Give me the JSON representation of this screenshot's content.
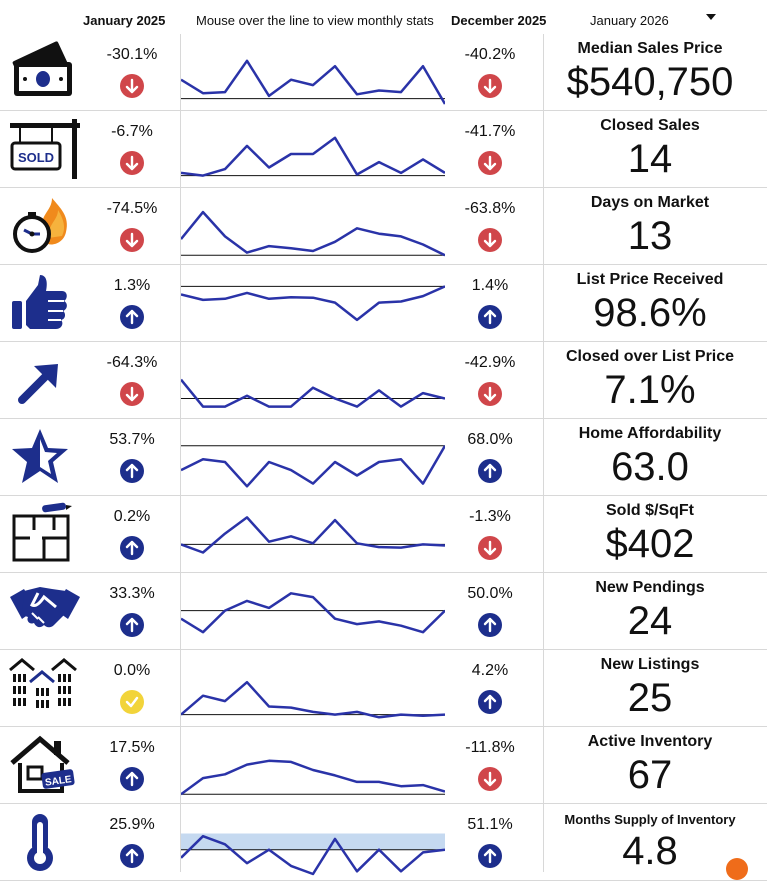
{
  "header": {
    "start_month": "January 2025",
    "instruction": "Mouse over the line to view monthly stats",
    "end_month": "December 2025",
    "selected_month": "January 2026"
  },
  "colors": {
    "up": "#1d2e8c",
    "down": "#d0464a",
    "neutral": "#f2d43a",
    "line": "#2a33a8",
    "band": "#c5d9f0"
  },
  "rows": [
    {
      "icon": "money-icon",
      "label": "Median Sales Price",
      "value": "$540,750",
      "yoy": "-30.1%",
      "yoy_dir": "down",
      "mom": "-40.2%",
      "mom_dir": "down",
      "spark": [
        0.55,
        0.8,
        0.78,
        0.2,
        0.85,
        0.55,
        0.65,
        0.3,
        0.82,
        0.75,
        0.78,
        0.3,
        1.0
      ],
      "baseline": 0.9,
      "band": null
    },
    {
      "icon": "sold-sign-icon",
      "label": "Closed Sales",
      "value": "14",
      "yoy": "-6.7%",
      "yoy_dir": "down",
      "mom": "-41.7%",
      "mom_dir": "down",
      "spark": [
        0.85,
        0.9,
        0.78,
        0.35,
        0.75,
        0.5,
        0.5,
        0.2,
        0.88,
        0.65,
        0.85,
        0.6,
        0.85
      ],
      "baseline": 0.9,
      "band": null
    },
    {
      "icon": "stopwatch-fire-icon",
      "label": "Days on Market",
      "value": "13",
      "yoy": "-74.5%",
      "yoy_dir": "down",
      "mom": "-63.8%",
      "mom_dir": "down",
      "spark": [
        0.65,
        0.15,
        0.6,
        0.9,
        0.78,
        0.82,
        0.87,
        0.7,
        0.45,
        0.55,
        0.6,
        0.75,
        0.95
      ],
      "baseline": 0.95,
      "band": null
    },
    {
      "icon": "thumbs-up-icon",
      "label": "List Price Received",
      "value": "98.6%",
      "yoy": "1.3%",
      "yoy_dir": "up",
      "mom": "1.4%",
      "mom_dir": "up",
      "spark": [
        0.25,
        0.35,
        0.33,
        0.22,
        0.33,
        0.3,
        0.31,
        0.4,
        0.72,
        0.4,
        0.38,
        0.28,
        0.1
      ],
      "baseline": 0.1,
      "band": null
    },
    {
      "icon": "arrow-up-right-icon",
      "label": "Closed over List Price",
      "value": "7.1%",
      "yoy": "-64.3%",
      "yoy_dir": "down",
      "mom": "-42.9%",
      "mom_dir": "down",
      "spark": [
        0.4,
        0.9,
        0.9,
        0.7,
        0.9,
        0.9,
        0.55,
        0.75,
        0.9,
        0.6,
        0.9,
        0.65,
        0.75
      ],
      "baseline": 0.75,
      "band": null
    },
    {
      "icon": "star-icon",
      "label": "Home Affordability",
      "value": "63.0",
      "yoy": "53.7%",
      "yoy_dir": "up",
      "mom": "68.0%",
      "mom_dir": "up",
      "spark": [
        0.65,
        0.45,
        0.5,
        0.95,
        0.5,
        0.65,
        0.9,
        0.5,
        0.75,
        0.5,
        0.45,
        0.9,
        0.2
      ],
      "baseline": 0.2,
      "band": null
    },
    {
      "icon": "floor-plan-icon",
      "label": "Sold $/SqFt",
      "value": "$402",
      "yoy": "0.2%",
      "yoy_dir": "up",
      "mom": "-1.3%",
      "mom_dir": "down",
      "spark": [
        0.6,
        0.75,
        0.4,
        0.1,
        0.55,
        0.45,
        0.58,
        0.15,
        0.58,
        0.65,
        0.66,
        0.6,
        0.62
      ],
      "baseline": 0.6,
      "band": null
    },
    {
      "icon": "handshake-icon",
      "label": "New Pendings",
      "value": "24",
      "yoy": "33.3%",
      "yoy_dir": "up",
      "mom": "50.0%",
      "mom_dir": "up",
      "spark": [
        0.55,
        0.8,
        0.4,
        0.22,
        0.35,
        0.08,
        0.15,
        0.55,
        0.65,
        0.6,
        0.68,
        0.8,
        0.4
      ],
      "baseline": 0.4,
      "band": null
    },
    {
      "icon": "houses-icon",
      "label": "New Listings",
      "value": "25",
      "yoy": "0.0%",
      "yoy_dir": "neutral",
      "mom": "4.2%",
      "mom_dir": "up",
      "spark": [
        0.9,
        0.55,
        0.65,
        0.3,
        0.75,
        0.77,
        0.85,
        0.9,
        0.85,
        0.95,
        0.9,
        0.92,
        0.9
      ],
      "baseline": 0.9,
      "band": null
    },
    {
      "icon": "house-sale-icon",
      "label": "Active Inventory",
      "value": "67",
      "yoy": "17.5%",
      "yoy_dir": "up",
      "mom": "-11.8%",
      "mom_dir": "down",
      "spark": [
        0.95,
        0.65,
        0.58,
        0.4,
        0.33,
        0.35,
        0.5,
        0.6,
        0.72,
        0.72,
        0.8,
        0.78,
        0.9
      ],
      "baseline": 0.95,
      "band": null
    },
    {
      "icon": "thermometer-icon",
      "label": "Months Supply of Inventory",
      "value": "4.8",
      "yoy": "25.9%",
      "yoy_dir": "up",
      "mom": "51.1%",
      "mom_dir": "up",
      "spark": [
        0.7,
        0.3,
        0.45,
        0.8,
        0.55,
        0.85,
        1.0,
        0.35,
        0.95,
        0.55,
        0.95,
        0.6,
        0.55
      ],
      "baseline": 0.55,
      "band": [
        0.25,
        0.55
      ]
    }
  ]
}
